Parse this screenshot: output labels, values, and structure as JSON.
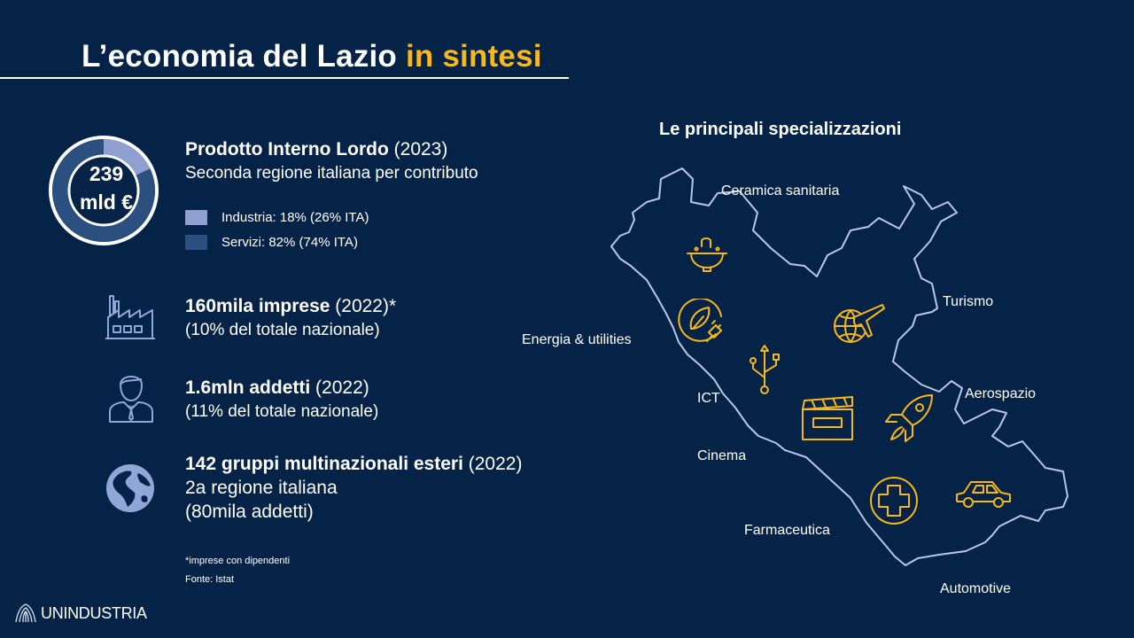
{
  "header": {
    "title_main": "L’economia del Lazio",
    "title_accent": "in sintesi"
  },
  "gdp": {
    "value": "239",
    "unit": "mld €",
    "title_bold": "Prodotto Interno Lordo",
    "title_year": "(2023)",
    "subtitle": "Seconda regione italiana per contributo",
    "legend": [
      {
        "label": "Industria: 18% (26% ITA)",
        "color": "#8f9fd0",
        "share": 0.18
      },
      {
        "label": "Servizi: 82% (74% ITA)",
        "color": "#2b4f7e",
        "share": 0.82
      }
    ]
  },
  "stats": [
    {
      "bold": "160mila imprese",
      "tail": " (2022)*",
      "lines": [
        "(10% del totale nazionale)"
      ],
      "icon": "factory-icon"
    },
    {
      "bold": "1.6mln addetti",
      "tail": " (2022)",
      "lines": [
        "(11% del totale nazionale)"
      ],
      "icon": "worker-icon"
    },
    {
      "bold": "142 gruppi multinazionali esteri",
      "tail": " (2022)",
      "lines": [
        "2a regione italiana",
        "(80mila addetti)"
      ],
      "icon": "globe-icon"
    }
  ],
  "footnotes": [
    "*imprese con dipendenti",
    "Fonte: Istat"
  ],
  "specializations": {
    "title": "Le principali specializzazioni",
    "labels": {
      "ceramica": "Ceramica sanitaria",
      "turismo": "Turismo",
      "energia": "Energia & utilities",
      "aerospazio": "Aerospazio",
      "ict": "ICT",
      "cinema": "Cinema",
      "farmaceutica": "Farmaceutica",
      "automotive": "Automotive"
    },
    "icons": [
      "sink-icon",
      "leaf-plug-icon",
      "plane-globe-icon",
      "usb-icon",
      "clapperboard-icon",
      "rocket-icon",
      "medical-cross-icon",
      "car-icon"
    ],
    "icon_color": "#f6b81c"
  },
  "brand": {
    "logo_text": "UNINDUSTRIA"
  },
  "colors": {
    "background": "#052347",
    "accent": "#f6b81c",
    "icon_stroke": "#8fa6d6",
    "map_outline": "#b9c6e8"
  }
}
